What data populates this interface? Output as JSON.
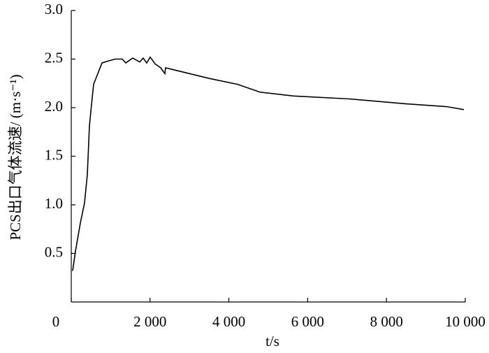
{
  "chart_data": {
    "type": "line",
    "x_label": "t/s",
    "y_label": "PCS出口气体流速/ (m·s⁻¹)",
    "x": [
      35,
      106,
      230,
      337,
      408,
      461,
      514,
      567,
      674,
      780,
      940,
      1117,
      1294,
      1383,
      1560,
      1738,
      1826,
      1915,
      2004,
      2128,
      2270,
      2376,
      2394,
      2801,
      3511,
      4220,
      4787,
      5638,
      7057,
      8475,
      9539,
      9965
    ],
    "series": [
      {
        "color": "#000000",
        "values": [
          0.32,
          0.52,
          0.81,
          1.02,
          1.31,
          1.81,
          2.03,
          2.24,
          2.35,
          2.46,
          2.48,
          2.5,
          2.5,
          2.46,
          2.51,
          2.47,
          2.51,
          2.46,
          2.52,
          2.45,
          2.41,
          2.35,
          2.41,
          2.37,
          2.3,
          2.24,
          2.16,
          2.12,
          2.09,
          2.04,
          2.01,
          1.98
        ]
      }
    ],
    "xlim": [
      0,
      10000
    ],
    "xticks": [
      0,
      {
        "value": 2000,
        "label": "2 000"
      },
      {
        "value": 4000,
        "label": "4 000"
      },
      {
        "value": 6000,
        "label": "6 000"
      },
      {
        "value": 8000,
        "label": "8 000"
      },
      {
        "value": 10000,
        "label": "10 000"
      }
    ],
    "ylim": [
      0,
      3
    ],
    "yticks": [
      0.5,
      {
        "value": 1,
        "label": "1.0"
      },
      1.5,
      {
        "value": 2,
        "label": "2.0"
      },
      2.5,
      {
        "value": 3,
        "label": "3.0"
      }
    ]
  }
}
